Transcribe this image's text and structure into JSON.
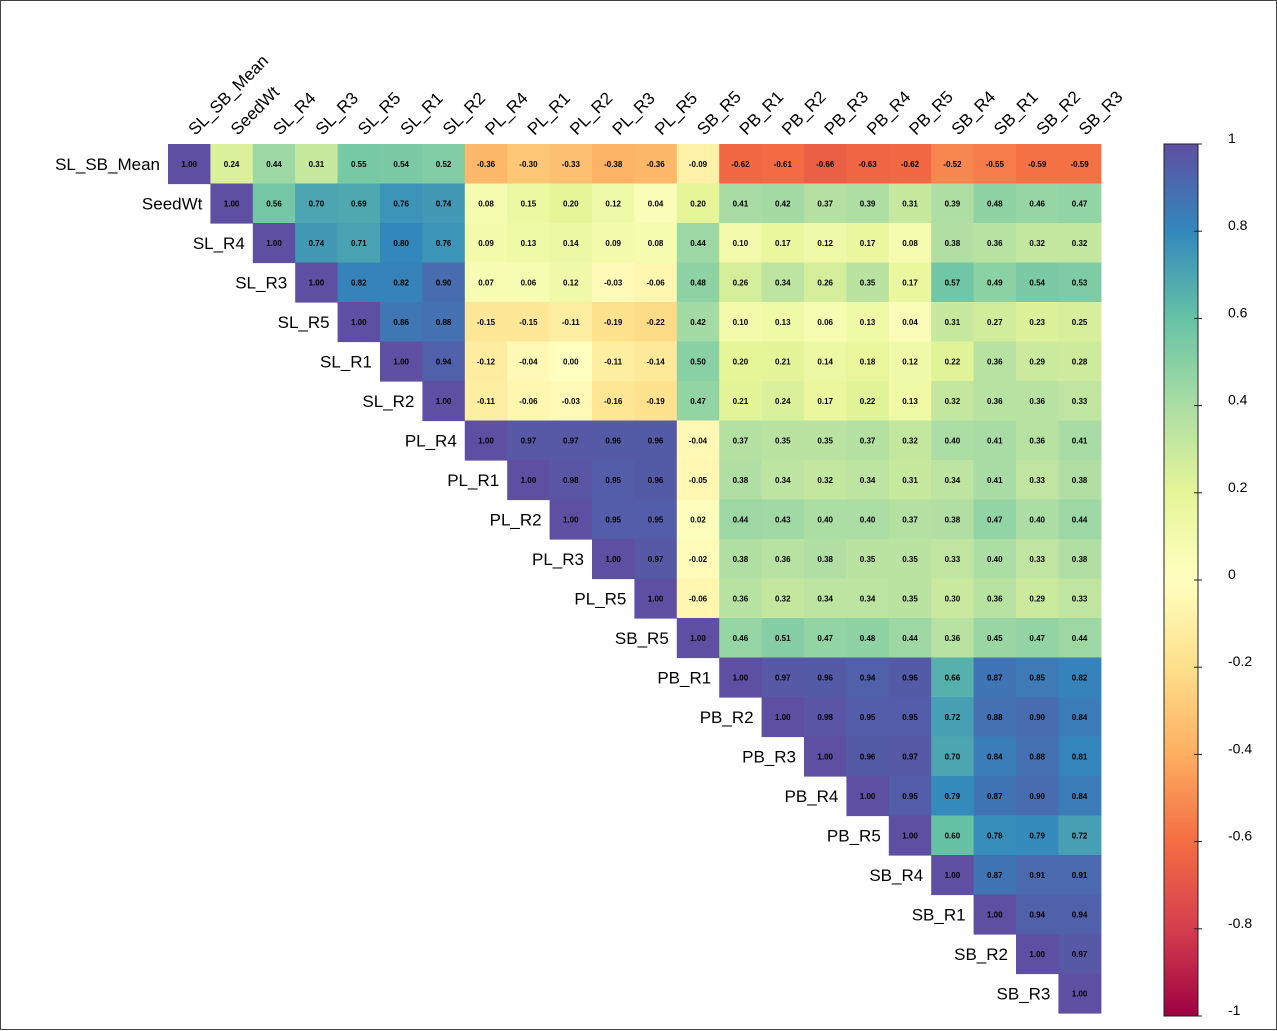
{
  "chart_data": {
    "type": "heatmap",
    "subtype": "correlation-matrix-upper-triangle",
    "labels": [
      "SL_SB_Mean",
      "SeedWt",
      "SL_R4",
      "SL_R3",
      "SL_R5",
      "SL_R1",
      "SL_R2",
      "PL_R4",
      "PL_R1",
      "PL_R2",
      "PL_R3",
      "PL_R5",
      "SB_R5",
      "PB_R1",
      "PB_R2",
      "PB_R3",
      "PB_R4",
      "PB_R5",
      "SB_R4",
      "SB_R1",
      "SB_R2",
      "SB_R3"
    ],
    "matrix": [
      [
        "1.00",
        "0.24",
        "0.44",
        "0.31",
        "0.55",
        "0.54",
        "0.52",
        "-0.36",
        "-0.30",
        "-0.33",
        "-0.38",
        "-0.36",
        "-0.09",
        "-0.62",
        "-0.61",
        "-0.66",
        "-0.63",
        "-0.62",
        "-0.52",
        "-0.55",
        "-0.59",
        "-0.59"
      ],
      [
        "1.00",
        "0.56",
        "0.70",
        "0.69",
        "0.76",
        "0.74",
        "0.08",
        "0.15",
        "0.20",
        "0.12",
        "0.04",
        "0.20",
        "0.41",
        "0.42",
        "0.37",
        "0.39",
        "0.31",
        "0.39",
        "0.48",
        "0.46",
        "0.47"
      ],
      [
        "1.00",
        "0.74",
        "0.71",
        "0.80",
        "0.76",
        "0.09",
        "0.13",
        "0.14",
        "0.09",
        "0.08",
        "0.44",
        "0.10",
        "0.17",
        "0.12",
        "0.17",
        "0.08",
        "0.38",
        "0.36",
        "0.32",
        "0.32"
      ],
      [
        "1.00",
        "0.82",
        "0.82",
        "0.90",
        "0.07",
        "0.06",
        "0.12",
        "-0.03",
        "-0.06",
        "0.48",
        "0.26",
        "0.34",
        "0.26",
        "0.35",
        "0.17",
        "0.57",
        "0.49",
        "0.54",
        "0.53"
      ],
      [
        "1.00",
        "0.86",
        "0.88",
        "-0.15",
        "-0.15",
        "-0.11",
        "-0.19",
        "-0.22",
        "0.42",
        "0.10",
        "0.13",
        "0.06",
        "0.13",
        "0.04",
        "0.31",
        "0.27",
        "0.23",
        "0.25"
      ],
      [
        "1.00",
        "0.94",
        "-0.12",
        "-0.04",
        "0.00",
        "-0.11",
        "-0.14",
        "0.50",
        "0.20",
        "0.21",
        "0.14",
        "0.18",
        "0.12",
        "0.22",
        "0.36",
        "0.29",
        "0.28"
      ],
      [
        "1.00",
        "-0.11",
        "-0.06",
        "-0.03",
        "-0.16",
        "-0.19",
        "0.47",
        "0.21",
        "0.24",
        "0.17",
        "0.22",
        "0.13",
        "0.32",
        "0.36",
        "0.36",
        "0.33"
      ],
      [
        "1.00",
        "0.97",
        "0.97",
        "0.96",
        "0.96",
        "-0.04",
        "0.37",
        "0.35",
        "0.35",
        "0.37",
        "0.32",
        "0.40",
        "0.41",
        "0.36",
        "0.41"
      ],
      [
        "1.00",
        "0.98",
        "0.95",
        "0.96",
        "-0.05",
        "0.38",
        "0.34",
        "0.32",
        "0.34",
        "0.31",
        "0.34",
        "0.41",
        "0.33",
        "0.38"
      ],
      [
        "1.00",
        "0.95",
        "0.95",
        "0.02",
        "0.44",
        "0.43",
        "0.40",
        "0.40",
        "0.37",
        "0.38",
        "0.47",
        "0.40",
        "0.44"
      ],
      [
        "1.00",
        "0.97",
        "-0.02",
        "0.38",
        "0.36",
        "0.38",
        "0.35",
        "0.35",
        "0.33",
        "0.40",
        "0.33",
        "0.38"
      ],
      [
        "1.00",
        "-0.06",
        "0.36",
        "0.32",
        "0.34",
        "0.34",
        "0.35",
        "0.30",
        "0.36",
        "0.29",
        "0.33"
      ],
      [
        "1.00",
        "0.46",
        "0.51",
        "0.47",
        "0.48",
        "0.44",
        "0.36",
        "0.45",
        "0.47",
        "0.44"
      ],
      [
        "1.00",
        "0.97",
        "0.96",
        "0.94",
        "0.96",
        "0.66",
        "0.87",
        "0.85",
        "0.82"
      ],
      [
        "1.00",
        "0.98",
        "0.95",
        "0.95",
        "0.72",
        "0.88",
        "0.90",
        "0.84"
      ],
      [
        "1.00",
        "0.96",
        "0.97",
        "0.70",
        "0.84",
        "0.88",
        "0.81"
      ],
      [
        "1.00",
        "0.95",
        "0.79",
        "0.87",
        "0.90",
        "0.84"
      ],
      [
        "1.00",
        "0.60",
        "0.78",
        "0.79",
        "0.72"
      ],
      [
        "1.00",
        "0.87",
        "0.91",
        "0.91"
      ],
      [
        "1.00",
        "0.94",
        "0.94"
      ],
      [
        "1.00",
        "0.97"
      ],
      [
        "1.00"
      ]
    ],
    "colorbar": {
      "range": [
        -1,
        1
      ],
      "ticks": [
        "1",
        "0.8",
        "0.6",
        "0.4",
        "0.2",
        "0",
        "-0.2",
        "-0.4",
        "-0.6",
        "-0.8",
        "-1"
      ],
      "tick_values": [
        1,
        0.8,
        0.6,
        0.4,
        0.2,
        0,
        -0.2,
        -0.4,
        -0.6,
        -0.8,
        -1
      ],
      "palette": [
        "#9E0142",
        "#D53E4F",
        "#F46D43",
        "#FDAE61",
        "#FEE08B",
        "#FFFFBF",
        "#E6F598",
        "#ABDDA4",
        "#66C2A5",
        "#3288BD",
        "#5E4FA2"
      ]
    }
  }
}
